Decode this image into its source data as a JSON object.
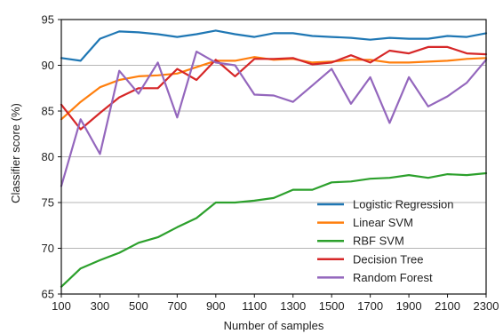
{
  "chart_data": {
    "type": "line",
    "title": "",
    "xlabel": "Number of samples",
    "ylabel": "Classifier score (%)",
    "xlim": [
      100,
      2300
    ],
    "ylim": [
      65,
      95
    ],
    "x_ticks": [
      100,
      300,
      500,
      700,
      900,
      1100,
      1300,
      1500,
      1700,
      1900,
      2100,
      2300
    ],
    "y_ticks": [
      65,
      70,
      75,
      80,
      85,
      90,
      95
    ],
    "x_tick_labels": [
      "100",
      "300",
      "500",
      "700",
      "900",
      "1100",
      "1300",
      "1500",
      "1700",
      "1900",
      "2100",
      "2300"
    ],
    "y_tick_labels": [
      "65",
      "70",
      "75",
      "80",
      "85",
      "90",
      "95"
    ],
    "grid": "horizontal",
    "legend_position": "bottom-right",
    "x": [
      100,
      200,
      300,
      400,
      500,
      600,
      700,
      800,
      900,
      1000,
      1100,
      1200,
      1300,
      1400,
      1500,
      1600,
      1700,
      1800,
      1900,
      2000,
      2100,
      2200,
      2300
    ],
    "series": [
      {
        "name": "Logistic Regression",
        "color": "#1f77b4",
        "values": [
          90.8,
          90.5,
          92.9,
          93.7,
          93.6,
          93.4,
          93.1,
          93.4,
          93.8,
          93.4,
          93.1,
          93.5,
          93.5,
          93.2,
          93.1,
          93.0,
          92.8,
          93.0,
          92.9,
          92.9,
          93.2,
          93.1,
          93.5
        ]
      },
      {
        "name": "Linear SVM",
        "color": "#ff7f0e",
        "values": [
          84.1,
          86.0,
          87.6,
          88.4,
          88.8,
          88.9,
          89.1,
          89.8,
          90.5,
          90.5,
          90.9,
          90.6,
          90.7,
          90.3,
          90.4,
          90.6,
          90.6,
          90.3,
          90.3,
          90.4,
          90.5,
          90.7,
          90.8
        ]
      },
      {
        "name": "RBF SVM",
        "color": "#2ca02c",
        "values": [
          65.8,
          67.8,
          68.7,
          69.5,
          70.6,
          71.2,
          72.3,
          73.3,
          75.0,
          75.0,
          75.2,
          75.5,
          76.4,
          76.4,
          77.2,
          77.3,
          77.6,
          77.7,
          78.0,
          77.7,
          78.1,
          78.0,
          78.2
        ]
      },
      {
        "name": "Decision Tree",
        "color": "#d62728",
        "values": [
          85.7,
          83.0,
          84.8,
          86.5,
          87.5,
          87.5,
          89.6,
          88.4,
          90.6,
          88.8,
          90.7,
          90.7,
          90.8,
          90.1,
          90.3,
          91.1,
          90.3,
          91.6,
          91.3,
          92.0,
          92.0,
          91.3,
          91.2
        ]
      },
      {
        "name": "Random Forest",
        "color": "#9467bd",
        "values": [
          76.8,
          84.1,
          80.3,
          89.4,
          86.9,
          90.3,
          84.3,
          91.5,
          90.3,
          90.0,
          86.8,
          86.7,
          86.0,
          87.8,
          89.6,
          85.8,
          88.7,
          83.7,
          88.7,
          85.5,
          86.6,
          88.1,
          90.6
        ]
      }
    ]
  }
}
